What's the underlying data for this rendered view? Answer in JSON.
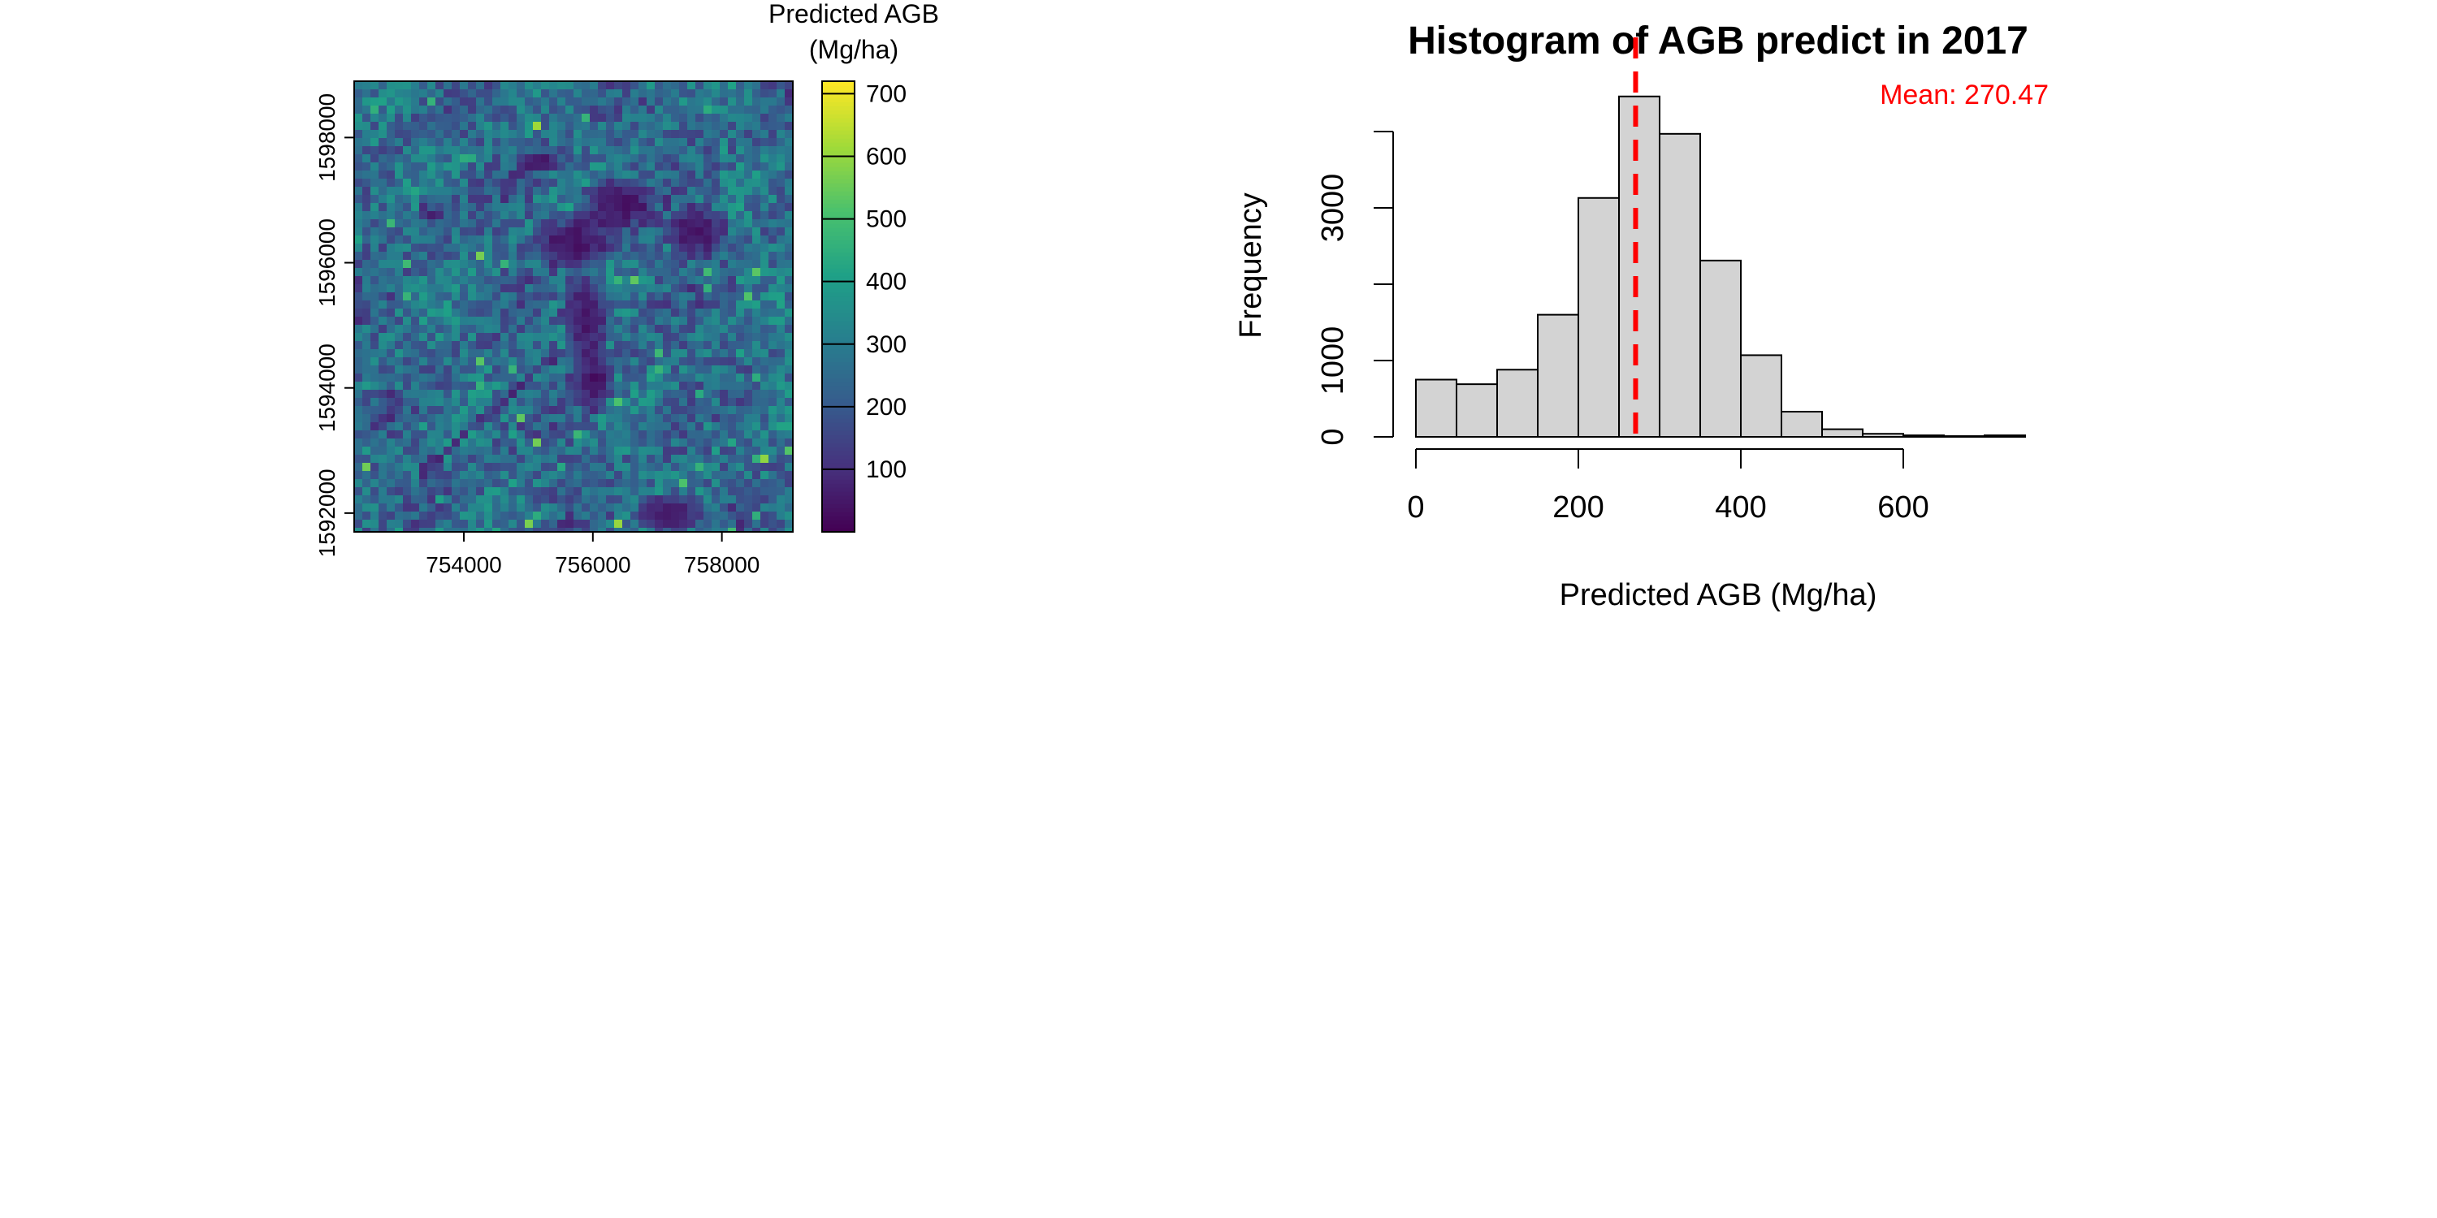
{
  "chart_data": [
    {
      "type": "heatmap",
      "colorbar_title_line1": "Predicted AGB",
      "colorbar_title_line2": "(Mg/ha)",
      "x_ticks": [
        754000,
        756000,
        758000
      ],
      "y_ticks": [
        1592000,
        1594000,
        1596000,
        1598000
      ],
      "xlim": [
        752300,
        759100
      ],
      "ylim": [
        1591700,
        1598900
      ],
      "colorbar_ticks": [
        100,
        200,
        300,
        400,
        500,
        600,
        700
      ],
      "colorbar_range": [
        0,
        720
      ],
      "colormap": [
        "#440154",
        "#46327e",
        "#365c8d",
        "#277f8e",
        "#1fa187",
        "#4ac16d",
        "#a0da39",
        "#fde725"
      ]
    },
    {
      "type": "bar",
      "title": "Histogram of AGB predict in 2017",
      "xlabel": "Predicted AGB (Mg/ha)",
      "ylabel": "Frequency",
      "bin_edges": [
        0,
        50,
        100,
        150,
        200,
        250,
        300,
        350,
        400,
        450,
        500,
        550,
        600,
        650,
        700,
        750
      ],
      "values": [
        750,
        690,
        880,
        1600,
        3130,
        4460,
        3970,
        2310,
        1070,
        330,
        100,
        40,
        20,
        10,
        20
      ],
      "x_ticks": [
        0,
        200,
        400,
        600
      ],
      "y_ticks": [
        0,
        1000,
        3000
      ],
      "xlim": [
        0,
        750
      ],
      "ylim": [
        0,
        4500
      ],
      "mean": 270.47,
      "mean_label": "Mean: 270.47",
      "bar_color": "#d3d3d3",
      "mean_line_color": "#ff0000"
    }
  ]
}
